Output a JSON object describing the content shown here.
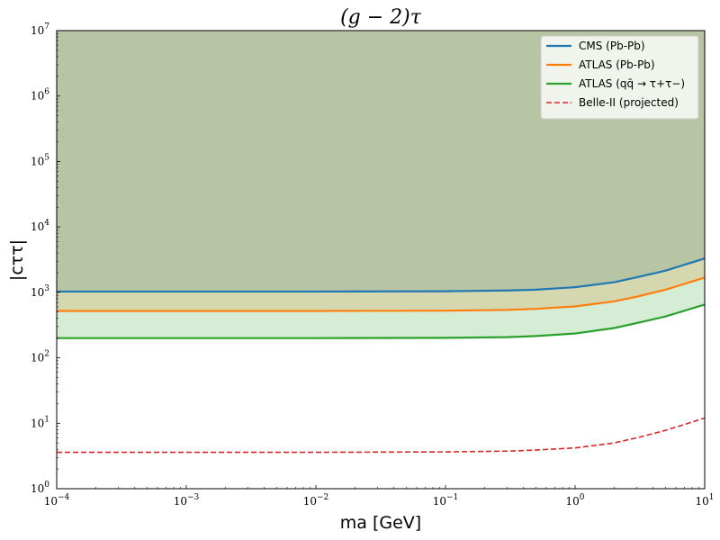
{
  "chart_data": {
    "type": "line",
    "title": "(g − 2)τ",
    "xlabel": "ma [GeV]",
    "ylabel": "|cττ|",
    "xscale": "log",
    "yscale": "log",
    "xlim": [
      0.0001,
      10
    ],
    "ylim": [
      1,
      10000000
    ],
    "x_ticks": [
      "10−4",
      "10−3",
      "10−2",
      "10−1",
      "100",
      "101"
    ],
    "y_ticks": [
      "100",
      "101",
      "102",
      "103",
      "104",
      "105",
      "106",
      "107"
    ],
    "grid": false,
    "legend": "top-right",
    "x": [
      0.0001,
      0.001,
      0.01,
      0.1,
      0.3,
      0.5,
      1,
      2,
      3,
      5,
      10
    ],
    "series": [
      {
        "name": "CMS (Pb-Pb)",
        "color": "#1f77b4",
        "style": "solid",
        "shaded": true,
        "values": [
          1030,
          1030,
          1030,
          1040,
          1070,
          1100,
          1200,
          1430,
          1700,
          2150,
          3300
        ]
      },
      {
        "name": "ATLAS (Pb-Pb)",
        "color": "#ff7f0e",
        "style": "solid",
        "shaded": true,
        "values": [
          520,
          520,
          520,
          525,
          540,
          560,
          610,
          730,
          860,
          1100,
          1680
        ]
      },
      {
        "name": "ATLAS (qq̄ → τ+τ−)",
        "color": "#2ca02c",
        "style": "solid",
        "shaded": true,
        "values": [
          200,
          200,
          200,
          202,
          207,
          215,
          235,
          285,
          340,
          430,
          650
        ]
      },
      {
        "name": "Belle-II (projected)",
        "color": "#d62728",
        "style": "dashed",
        "shaded": false,
        "values": [
          3.6,
          3.6,
          3.6,
          3.65,
          3.75,
          3.9,
          4.2,
          5.0,
          6.0,
          7.8,
          12
        ]
      }
    ]
  }
}
